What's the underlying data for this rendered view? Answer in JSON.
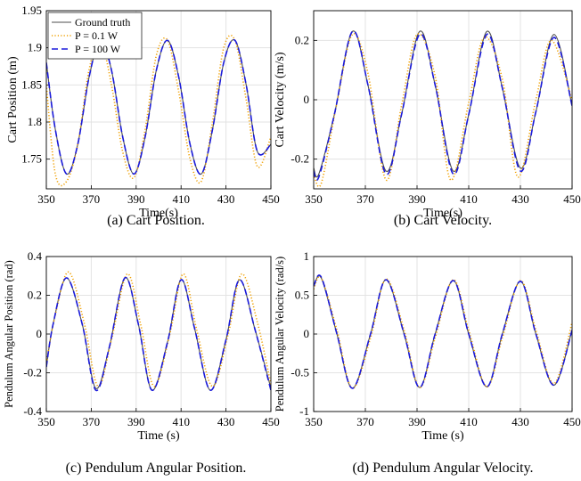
{
  "figure": {
    "legend": {
      "entries": [
        {
          "label": "Ground truth",
          "color": "#4d4d4d",
          "style": "solid"
        },
        {
          "label": "P = 0.1 W",
          "color": "#f0a000",
          "style": "dotted"
        },
        {
          "label": "P = 100 W",
          "color": "#1a1adb",
          "style": "dashed"
        }
      ]
    }
  },
  "chart_data": [
    {
      "type": "line",
      "caption": "(a) Cart Position.",
      "xlabel": "Time(s)",
      "ylabel": "Cart Position (m)",
      "xlim": [
        350,
        450
      ],
      "ylim": [
        1.71,
        1.95
      ],
      "xticks": [
        "350",
        "370",
        "390",
        "410",
        "430",
        "450"
      ],
      "yticks": [
        "1.75",
        "1.8",
        "1.85",
        "1.9",
        "1.95"
      ],
      "grid": true,
      "legend_position": "top-left",
      "series": [
        {
          "name": "Ground truth",
          "color": "#4d4d4d",
          "style": "solid",
          "x": [
            350,
            354,
            359,
            364,
            369,
            374,
            379,
            384,
            389,
            394,
            399,
            404,
            409,
            414,
            419,
            424,
            429,
            434,
            439,
            444,
            450
          ],
          "y": [
            1.88,
            1.79,
            1.73,
            1.77,
            1.86,
            1.91,
            1.87,
            1.78,
            1.73,
            1.78,
            1.87,
            1.91,
            1.86,
            1.77,
            1.73,
            1.79,
            1.88,
            1.91,
            1.85,
            1.76,
            1.77
          ]
        },
        {
          "name": "P = 0.1 W",
          "color": "#f0a000",
          "style": "dotted",
          "x": [
            350,
            354,
            359,
            364,
            369,
            374,
            379,
            384,
            389,
            394,
            399,
            404,
            409,
            414,
            419,
            424,
            429,
            434,
            439,
            444,
            450
          ],
          "y": [
            1.85,
            1.73,
            1.72,
            1.77,
            1.87,
            1.91,
            1.85,
            1.76,
            1.725,
            1.79,
            1.89,
            1.91,
            1.84,
            1.75,
            1.72,
            1.8,
            1.9,
            1.91,
            1.83,
            1.74,
            1.78
          ]
        },
        {
          "name": "P = 100 W",
          "color": "#1a1adb",
          "style": "dashed",
          "x": [
            350,
            354,
            359,
            364,
            369,
            374,
            379,
            384,
            389,
            394,
            399,
            404,
            409,
            414,
            419,
            424,
            429,
            434,
            439,
            444,
            450
          ],
          "y": [
            1.88,
            1.79,
            1.73,
            1.77,
            1.86,
            1.91,
            1.87,
            1.78,
            1.73,
            1.78,
            1.87,
            1.91,
            1.86,
            1.77,
            1.73,
            1.79,
            1.88,
            1.91,
            1.85,
            1.76,
            1.77
          ]
        }
      ]
    },
    {
      "type": "line",
      "caption": "(b) Cart Velocity.",
      "xlabel": "Time(s)",
      "ylabel": "Cart Velocity (m/s)",
      "xlim": [
        350,
        450
      ],
      "ylim": [
        -0.3,
        0.3
      ],
      "xticks": [
        "350",
        "370",
        "390",
        "410",
        "430",
        "450"
      ],
      "yticks": [
        "-0.2",
        "0",
        "0.2"
      ],
      "grid": true,
      "series": [
        {
          "name": "Ground truth",
          "color": "#4d4d4d",
          "style": "solid",
          "x": [
            350,
            352,
            358,
            365,
            371,
            378,
            384,
            391,
            397,
            404,
            410,
            417,
            423,
            430,
            436,
            443,
            450
          ],
          "y": [
            -0.23,
            -0.25,
            -0.05,
            0.23,
            0.05,
            -0.24,
            -0.05,
            0.23,
            0.05,
            -0.24,
            -0.05,
            0.23,
            0.04,
            -0.23,
            -0.04,
            0.22,
            -0.02
          ]
        },
        {
          "name": "P = 0.1 W",
          "color": "#f0a000",
          "style": "dotted",
          "x": [
            350,
            353,
            359,
            365,
            371,
            378,
            384,
            390,
            397,
            403,
            410,
            416,
            423,
            429,
            436,
            442,
            450
          ],
          "y": [
            -0.25,
            -0.28,
            -0.01,
            0.22,
            0.09,
            -0.27,
            -0.02,
            0.22,
            0.08,
            -0.27,
            -0.01,
            0.21,
            0.07,
            -0.26,
            0.0,
            0.2,
            0.0
          ]
        },
        {
          "name": "P = 100 W",
          "color": "#1a1adb",
          "style": "dashed",
          "x": [
            350,
            352,
            358,
            365,
            371,
            378,
            384,
            391,
            397,
            404,
            410,
            417,
            423,
            430,
            436,
            443,
            450
          ],
          "y": [
            -0.24,
            -0.26,
            -0.05,
            0.23,
            0.05,
            -0.25,
            -0.05,
            0.22,
            0.05,
            -0.25,
            -0.05,
            0.22,
            0.04,
            -0.24,
            -0.04,
            0.21,
            -0.02
          ]
        }
      ]
    },
    {
      "type": "line",
      "caption": "(c) Pendulum Angular Position.",
      "xlabel": "Time (s)",
      "ylabel": "Pendulum Angular Position (rad)",
      "xlim": [
        350,
        450
      ],
      "ylim": [
        -0.4,
        0.4
      ],
      "xticks": [
        "350",
        "370",
        "390",
        "410",
        "430",
        "450"
      ],
      "yticks": [
        "-0.4",
        "-0.2",
        "0",
        "0.2",
        "0.4"
      ],
      "grid": true,
      "series": [
        {
          "name": "Ground truth",
          "color": "#4d4d4d",
          "style": "solid",
          "x": [
            350,
            353,
            359,
            366,
            372,
            378,
            385,
            391,
            397,
            404,
            410,
            416,
            423,
            430,
            436,
            443,
            450
          ],
          "y": [
            -0.17,
            0.05,
            0.29,
            0.05,
            -0.28,
            -0.07,
            0.29,
            0.05,
            -0.29,
            -0.04,
            0.28,
            0.03,
            -0.29,
            -0.03,
            0.28,
            0.02,
            -0.28
          ]
        },
        {
          "name": "P = 0.1 W",
          "color": "#f0a000",
          "style": "dotted",
          "x": [
            350,
            354,
            360,
            367,
            373,
            379,
            386,
            392,
            398,
            405,
            411,
            417,
            424,
            431,
            437,
            444,
            450
          ],
          "y": [
            -0.15,
            0.1,
            0.32,
            0.05,
            -0.27,
            -0.03,
            0.31,
            0.05,
            -0.27,
            0.0,
            0.31,
            0.02,
            -0.27,
            0.0,
            0.31,
            0.06,
            -0.26
          ]
        },
        {
          "name": "P = 100 W",
          "color": "#1a1adb",
          "style": "dashed",
          "x": [
            350,
            353,
            359,
            366,
            372,
            378,
            385,
            391,
            397,
            404,
            410,
            416,
            423,
            430,
            436,
            443,
            450
          ],
          "y": [
            -0.17,
            0.05,
            0.29,
            0.05,
            -0.29,
            -0.07,
            0.29,
            0.05,
            -0.29,
            -0.04,
            0.28,
            0.03,
            -0.29,
            -0.03,
            0.28,
            0.02,
            -0.29
          ]
        }
      ]
    },
    {
      "type": "line",
      "caption": "(d) Pendulum Angular Velocity.",
      "xlabel": "Time (s)",
      "ylabel": "Pendulum Angular Velocity (rad/s)",
      "xlim": [
        350,
        450
      ],
      "ylim": [
        -1,
        1
      ],
      "xticks": [
        "350",
        "370",
        "390",
        "410",
        "430",
        "450"
      ],
      "yticks": [
        "-1",
        "-0.5",
        "0",
        "0.5",
        "1"
      ],
      "grid": true,
      "series": [
        {
          "name": "Ground truth",
          "color": "#4d4d4d",
          "style": "solid",
          "x": [
            350,
            353,
            359,
            365,
            372,
            378,
            385,
            391,
            397,
            404,
            410,
            417,
            423,
            430,
            436,
            443,
            450
          ],
          "y": [
            0.62,
            0.72,
            0.0,
            -0.7,
            0.0,
            0.7,
            0.0,
            -0.69,
            0.0,
            0.69,
            0.0,
            -0.68,
            0.0,
            0.68,
            0.0,
            -0.66,
            0.05
          ]
        },
        {
          "name": "P = 0.1 W",
          "color": "#f0a000",
          "style": "dotted",
          "x": [
            350,
            353,
            359,
            365,
            372,
            378,
            385,
            391,
            397,
            404,
            410,
            417,
            423,
            430,
            436,
            443,
            450
          ],
          "y": [
            0.58,
            0.72,
            0.05,
            -0.7,
            -0.05,
            0.71,
            0.05,
            -0.69,
            -0.05,
            0.7,
            0.05,
            -0.68,
            -0.05,
            0.69,
            0.05,
            -0.64,
            0.15
          ]
        },
        {
          "name": "P = 100 W",
          "color": "#1a1adb",
          "style": "dashed",
          "x": [
            350,
            353,
            359,
            365,
            372,
            378,
            385,
            391,
            397,
            404,
            410,
            417,
            423,
            430,
            436,
            443,
            450
          ],
          "y": [
            0.62,
            0.73,
            0.0,
            -0.7,
            0.0,
            0.7,
            0.0,
            -0.69,
            0.0,
            0.69,
            0.0,
            -0.68,
            0.0,
            0.68,
            0.0,
            -0.66,
            0.05
          ]
        }
      ]
    }
  ]
}
